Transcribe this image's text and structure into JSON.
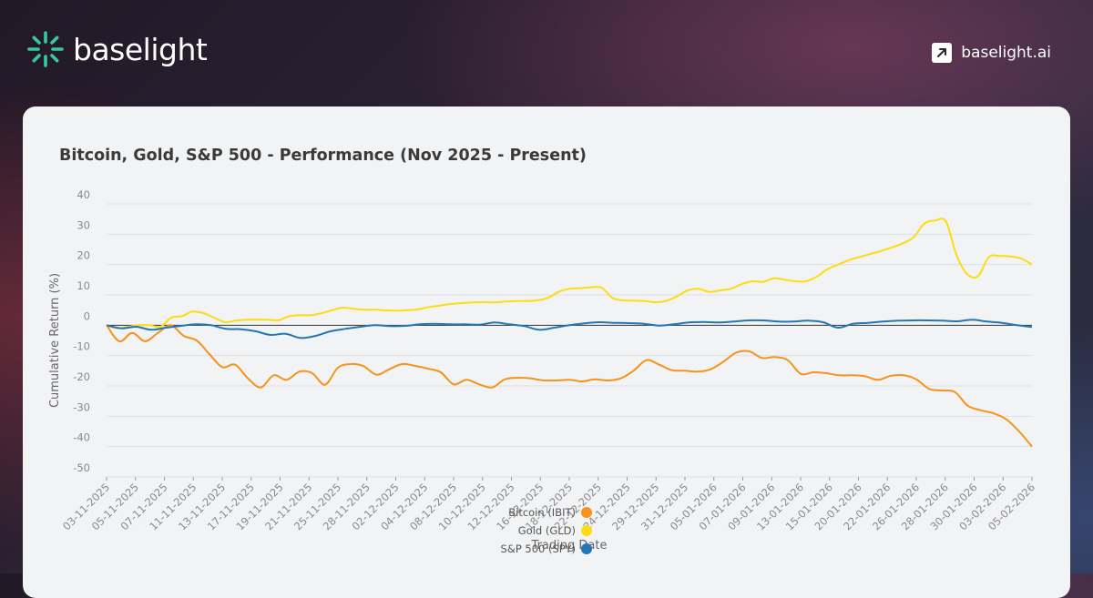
{
  "brand": {
    "name": "baselight",
    "site": "baselight.ai",
    "accent": "#35c9a2"
  },
  "chart_data": {
    "type": "line",
    "title": "Bitcoin, Gold, S&P 500 - Performance (Nov 2025 - Present)",
    "xlabel": "Trading Date",
    "ylabel": "Cumulative Return (%)",
    "ylim": [
      -50,
      40
    ],
    "yticks": [
      40,
      30,
      20,
      10,
      0,
      -10,
      -20,
      -30,
      -40,
      -50
    ],
    "grid": true,
    "legend_position": "bottom-center",
    "x_tick_labels": [
      "03-11-2025",
      "05-11-2025",
      "07-11-2025",
      "11-11-2025",
      "13-11-2025",
      "17-11-2025",
      "19-11-2025",
      "21-11-2025",
      "25-11-2025",
      "28-11-2025",
      "02-12-2025",
      "04-12-2025",
      "08-12-2025",
      "10-12-2025",
      "12-12-2025",
      "16-12-2025",
      "18-12-2025",
      "22-12-2025",
      "24-12-2025",
      "29-12-2025",
      "31-12-2025",
      "05-01-2026",
      "07-01-2026",
      "09-01-2026",
      "13-01-2026",
      "15-01-2026",
      "20-01-2026",
      "22-01-2026",
      "26-01-2026",
      "28-01-2026",
      "30-01-2026",
      "03-02-2026",
      "05-02-2026"
    ],
    "series": [
      {
        "name": "Bitcoin (IBIT)",
        "color": "#f7931a",
        "values": [
          0,
          -5.3,
          -2.5,
          -5.3,
          -2.5,
          0,
          -3.5,
          -5,
          -9.5,
          -13.8,
          -13,
          -17.5,
          -20.5,
          -16.5,
          -18,
          -15.3,
          -15.8,
          -19.6,
          -14,
          -12.8,
          -13.5,
          -16.3,
          -14.5,
          -12.8,
          -13.4,
          -14.3,
          -15.5,
          -19.5,
          -18,
          -19.5,
          -20.5,
          -17.8,
          -17.3,
          -17.5,
          -18.2,
          -18.2,
          -18,
          -18.5,
          -17.8,
          -18.2,
          -17.5,
          -15,
          -11.5,
          -13,
          -14.8,
          -15,
          -15.3,
          -14.5,
          -12,
          -9,
          -8.6,
          -10.8,
          -10.5,
          -11.5,
          -16,
          -15.5,
          -15.8,
          -16.5,
          -16.5,
          -16.8,
          -18,
          -16.7,
          -16.5,
          -17.8,
          -21,
          -21.5,
          -22,
          -26.5,
          -28,
          -29,
          -31,
          -35,
          -40
        ]
      },
      {
        "name": "Gold (GLD)",
        "color": "#fddc11",
        "values": [
          0,
          -1,
          -0.5,
          0,
          0,
          -0.5,
          2.5,
          3,
          4.5,
          4,
          2.5,
          1,
          1.5,
          1.8,
          1.8,
          1.8,
          1.7,
          3,
          3.3,
          3.3,
          4,
          5,
          5.8,
          5.4,
          5.1,
          5.1,
          4.9,
          4.8,
          5,
          5.3,
          6,
          6.5,
          7,
          7.3,
          7.5,
          7.6,
          7.5,
          7.8,
          8,
          8,
          8.2,
          9,
          11,
          12,
          12.2,
          12.5,
          12.4,
          9,
          8.2,
          8.1,
          8,
          7.6,
          8,
          9.5,
          11.5,
          12,
          11,
          11.5,
          12,
          13.5,
          14.5,
          14.3,
          15.5,
          15,
          14.5,
          14.5,
          16,
          18.5,
          20,
          21.5,
          22.5,
          23.5,
          24.5,
          25.7,
          27,
          29,
          33.5,
          34.5,
          34.2,
          23,
          16.8,
          16.2,
          22.5,
          22.8,
          22.7,
          22,
          20
        ]
      },
      {
        "name": "S&P 500 (SPY)",
        "color": "#2278b5",
        "values": [
          0,
          -1,
          -0.5,
          -1.5,
          -0.8,
          -0.2,
          0.3,
          0,
          -1.2,
          -1.3,
          -2,
          -3.2,
          -2.8,
          -4.2,
          -3.5,
          -2,
          -1.2,
          -0.5,
          0,
          -0.3,
          -0.2,
          0.3,
          0.5,
          0.3,
          0.3,
          0.2,
          0.9,
          0.3,
          -0.3,
          -1.5,
          -0.8,
          0,
          0.6,
          1,
          0.8,
          0.7,
          0.5,
          -0.1,
          0.3,
          0.9,
          1.1,
          0.9,
          1.2,
          1.6,
          1.6,
          1.2,
          1.2,
          1.5,
          1,
          -0.8,
          0.5,
          0.8,
          1.2,
          1.5,
          1.6,
          1.6,
          1.5,
          1.3,
          1.8,
          1.2,
          0.8,
          0,
          -0.6
        ]
      }
    ]
  }
}
